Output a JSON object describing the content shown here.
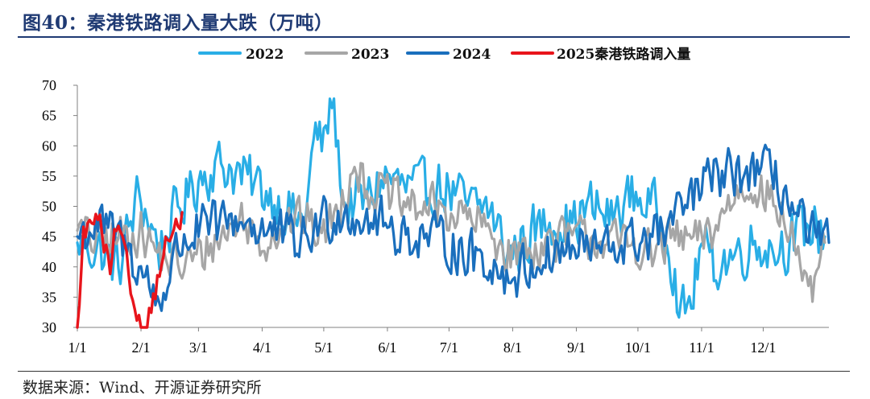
{
  "title": "图40：秦港铁路调入量大跌（万吨）",
  "source": "数据来源：Wind、开源证券研究所",
  "chart_data": {
    "type": "line",
    "title": "秦港铁路调入量大跌（万吨）",
    "unit": "万吨",
    "ylim": [
      30,
      70
    ],
    "yticks": [
      30,
      35,
      40,
      45,
      50,
      55,
      60,
      65,
      70
    ],
    "x_domain_days": [
      0,
      366
    ],
    "xticks": [
      {
        "label": "1/1",
        "day": 0
      },
      {
        "label": "2/1",
        "day": 31
      },
      {
        "label": "3/1",
        "day": 59
      },
      {
        "label": "4/1",
        "day": 90
      },
      {
        "label": "5/1",
        "day": 120
      },
      {
        "label": "6/1",
        "day": 151
      },
      {
        "label": "7/1",
        "day": 181
      },
      {
        "label": "8/1",
        "day": 212
      },
      {
        "label": "9/1",
        "day": 243
      },
      {
        "label": "10/1",
        "day": 273
      },
      {
        "label": "11/1",
        "day": 304
      },
      {
        "label": "12/1",
        "day": 334
      }
    ],
    "legend_position": "top-center",
    "series": [
      {
        "name": "2022",
        "color": "#29aee6",
        "anchors": [
          [
            0,
            44
          ],
          [
            10,
            43
          ],
          [
            20,
            40
          ],
          [
            30,
            52
          ],
          [
            40,
            43
          ],
          [
            50,
            50
          ],
          [
            60,
            55
          ],
          [
            70,
            57
          ],
          [
            80,
            55
          ],
          [
            90,
            53
          ],
          [
            100,
            50
          ],
          [
            110,
            47
          ],
          [
            116,
            62
          ],
          [
            120,
            60
          ],
          [
            124,
            68
          ],
          [
            130,
            50
          ],
          [
            140,
            51
          ],
          [
            150,
            55
          ],
          [
            160,
            53
          ],
          [
            170,
            53
          ],
          [
            180,
            53
          ],
          [
            190,
            50
          ],
          [
            200,
            50
          ],
          [
            210,
            42
          ],
          [
            220,
            45
          ],
          [
            230,
            48
          ],
          [
            240,
            47
          ],
          [
            250,
            50
          ],
          [
            260,
            48
          ],
          [
            270,
            52
          ],
          [
            280,
            50
          ],
          [
            288,
            45
          ],
          [
            294,
            31
          ],
          [
            300,
            36
          ],
          [
            304,
            44
          ],
          [
            310,
            40
          ],
          [
            320,
            42
          ],
          [
            330,
            44
          ],
          [
            340,
            43
          ],
          [
            350,
            45
          ],
          [
            358,
            47
          ],
          [
            364,
            45
          ]
        ],
        "min": 30,
        "max": 70
      },
      {
        "name": "2023",
        "color": "#a6a6a6",
        "anchors": [
          [
            0,
            46
          ],
          [
            10,
            44
          ],
          [
            20,
            45
          ],
          [
            30,
            46
          ],
          [
            40,
            42
          ],
          [
            50,
            40
          ],
          [
            60,
            42
          ],
          [
            70,
            45
          ],
          [
            80,
            48
          ],
          [
            90,
            44
          ],
          [
            100,
            47
          ],
          [
            110,
            48
          ],
          [
            120,
            45
          ],
          [
            130,
            52
          ],
          [
            135,
            58
          ],
          [
            140,
            53
          ],
          [
            150,
            52
          ],
          [
            160,
            50
          ],
          [
            170,
            50
          ],
          [
            180,
            49
          ],
          [
            190,
            48
          ],
          [
            200,
            46
          ],
          [
            210,
            42
          ],
          [
            220,
            43
          ],
          [
            230,
            44
          ],
          [
            240,
            45
          ],
          [
            250,
            45
          ],
          [
            260,
            44
          ],
          [
            270,
            44
          ],
          [
            280,
            42
          ],
          [
            290,
            45
          ],
          [
            300,
            44
          ],
          [
            310,
            46
          ],
          [
            320,
            52
          ],
          [
            330,
            54
          ],
          [
            340,
            50
          ],
          [
            350,
            44
          ],
          [
            356,
            33
          ],
          [
            364,
            44
          ]
        ],
        "min": 30,
        "max": 60
      },
      {
        "name": "2024",
        "color": "#1a6fbd",
        "anchors": [
          [
            0,
            45
          ],
          [
            10,
            47
          ],
          [
            20,
            45
          ],
          [
            30,
            40
          ],
          [
            40,
            34
          ],
          [
            50,
            44
          ],
          [
            60,
            46
          ],
          [
            70,
            47
          ],
          [
            80,
            48
          ],
          [
            90,
            46
          ],
          [
            100,
            45
          ],
          [
            110,
            44
          ],
          [
            120,
            48
          ],
          [
            130,
            49
          ],
          [
            140,
            48
          ],
          [
            150,
            47
          ],
          [
            160,
            45
          ],
          [
            170,
            45
          ],
          [
            180,
            44
          ],
          [
            190,
            42
          ],
          [
            200,
            41
          ],
          [
            210,
            38
          ],
          [
            220,
            40
          ],
          [
            230,
            42
          ],
          [
            240,
            43
          ],
          [
            250,
            43
          ],
          [
            260,
            43
          ],
          [
            270,
            44
          ],
          [
            280,
            45
          ],
          [
            290,
            47
          ],
          [
            300,
            52
          ],
          [
            310,
            55
          ],
          [
            320,
            55
          ],
          [
            330,
            56
          ],
          [
            340,
            55
          ],
          [
            350,
            48
          ],
          [
            360,
            44
          ],
          [
            366,
            44
          ]
        ],
        "min": 30,
        "max": 64
      },
      {
        "name": "2025秦港铁路调入量",
        "color": "#e8141b",
        "anchors": [
          [
            0,
            30
          ],
          [
            3,
            45
          ],
          [
            8,
            48
          ],
          [
            12,
            46
          ],
          [
            16,
            38
          ],
          [
            19,
            47
          ],
          [
            22,
            43
          ],
          [
            26,
            37
          ],
          [
            28,
            33
          ],
          [
            32,
            30
          ],
          [
            36,
            33
          ],
          [
            42,
            43
          ],
          [
            48,
            46
          ],
          [
            51,
            49
          ]
        ],
        "min": 30,
        "max": 52
      }
    ]
  }
}
